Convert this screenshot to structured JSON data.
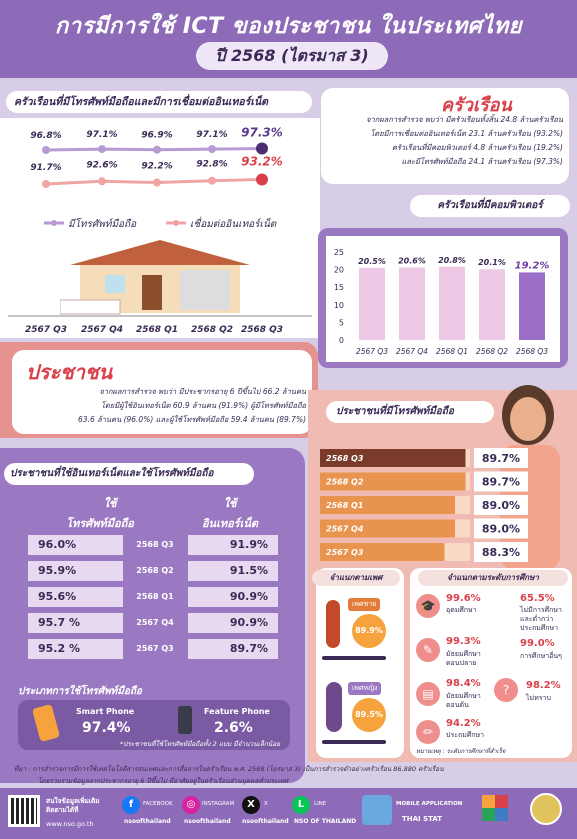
{
  "header": {
    "title": "การมีการใช้ ICT ของประชาชน ในประเทศไทย",
    "subtitle": "ปี 2568 (ไตรมาส 3)"
  },
  "household": {
    "section_title": "ครัวเรือนที่มีโทรศัพท์มือถือและมีการเชื่อมต่ออินเทอร์เน็ต",
    "legend_mobile": "มีโทรศัพท์มือถือ",
    "legend_internet": "เชื่อมต่ออินเทอร์เน็ต",
    "box_title": "ครัวเรือน",
    "box_lines": [
      "จากผลการสำรวจ พบว่า มีครัวเรือนทั้งสิ้น 24.8 ล้านครัวเรือน",
      "โดยมีการเชื่อมต่ออินเทอร์เน็ต 23.1 ล้านครัวเรือน (93.2%)",
      "ครัวเรือนที่มีคอมพิวเตอร์ 4.8 ล้านครัวเรือน (19.2%)",
      "และมีโทรศัพท์มือถือ 24.1 ล้านครัวเรือน (97.3%)"
    ],
    "computer_title": "ครัวเรือนที่มีคอมพิวเตอร์"
  },
  "people": {
    "title": "ประชาชน",
    "lines": [
      "จากผลการสำรวจ พบว่า มีประชากรอายุ 6 ปีขึ้นไป 66.2 ล้านคน",
      "โดยมีผู้ใช้อินเทอร์เน็ต 60.9 ล้านคน (91.9%) ผู้มีโทรศัพท์มือถือ",
      "63.6 ล้านคน (96.0%) และผู้ใช้โทรศัพท์มือถือ 59.4 ล้านคน (89.7%)"
    ]
  },
  "usage": {
    "title": "ประชาชนที่ใช้อินเทอร์เน็ตและใช้โทรศัพท์มือถือ",
    "col_left": "ใช้\nโทรศัพท์มือถือ",
    "col_left_a": "ใช้",
    "col_left_b": "โทรศัพท์มือถือ",
    "col_right_a": "ใช้",
    "col_right_b": "อินเทอร์เน็ต",
    "rows": [
      {
        "mobile": "96.0%",
        "q": "2568 Q3",
        "internet": "91.9%"
      },
      {
        "mobile": "95.9%",
        "q": "2568 Q2",
        "internet": "91.5%"
      },
      {
        "mobile": "95.6%",
        "q": "2568 Q1",
        "internet": "90.9%"
      },
      {
        "mobile": "95.7 %",
        "q": "2567 Q4",
        "internet": "90.9%"
      },
      {
        "mobile": "95.2 %",
        "q": "2567 Q3",
        "internet": "89.7%"
      }
    ],
    "type_title": "ประเภทการใช้โทรศัพท์มือถือ",
    "smart_label": "Smart Phone",
    "smart_val": "97.4%",
    "feature_label": "Feature Phone",
    "feature_val": "2.6%",
    "note": "*ประชาชนที่ใช้โทรศัพท์มือถือทั้ง 2 แบบ มีจำนวนเล็กน้อย"
  },
  "mobile_people": {
    "title": "ประชาชนที่มีโทรศัพท์มือถือ",
    "gender_title": "จำแนกตามเพศ",
    "male": "เพศชาย",
    "male_val": "89.9%",
    "female": "เพศหญิง",
    "female_val": "89.5%",
    "edu_title": "จำแนกตามระดับการศึกษา",
    "edu": [
      {
        "val": "99.6%",
        "label": "อุดมศึกษา"
      },
      {
        "val": "65.5%",
        "label": "ไม่มีการศึกษา และต่ำกว่า ประถมศึกษา"
      },
      {
        "val": "99.3%",
        "label": "มัธยมศึกษา ตอนปลาย"
      },
      {
        "val": "99.0%",
        "label": "การศึกษาอื่นๆ"
      },
      {
        "val": "98.4%",
        "label": "มัธยมศึกษา ตอนต้น"
      },
      {
        "val": "98.2%",
        "label": "ไม่ทราบ"
      },
      {
        "val": "94.2%",
        "label": "ประถมศึกษา"
      }
    ],
    "remark": "หมายเหตุ : ระดับการศึกษาที่สำเร็จ"
  },
  "footnote": [
    "ที่มา : การสำรวจการมีการใช้เทคโนโลยีสารสนเทศและการสื่อสารในครัวเรือน พ.ศ. 2568 (ไตรมาส 3) เป็นการสำรวจตัวอย่างครัวเรือน 86,880 ครัวเรือน",
    "โดยรวบรวมข้อมูลจากประชากรอายุ 6 ปีขึ้นไป ที่อาศัยอยู่ในครัวเรือนส่วนบุคคลทั่วประเทศ"
  ],
  "footer": {
    "qr_text": "สนใจข้อมูลเพิ่มเติม ติดตามได้ที่",
    "site": "www.nso.go.th",
    "fb": "FACEBOOK",
    "fb_h": "nsoofthailand",
    "ig": "INSTAGRAM",
    "ig_h": "nsoofthailand",
    "x": "X",
    "x_h": "nsoofthailand",
    "line": "LINE",
    "line_h": "NSO OF THAILAND",
    "app": "MOBILE APPLICATION",
    "app_name": "THAI STAT"
  },
  "colors": {
    "purple": "#8e6bb8",
    "red": "#d9414a",
    "pink": "#f08e8e",
    "line_mobile": "#b69ad1",
    "line_internet": "#f0a4a4"
  },
  "chart_data": [
    {
      "type": "line",
      "categories": [
        "2567 Q3",
        "2567 Q4",
        "2568 Q1",
        "2568 Q2",
        "2568 Q3"
      ],
      "series": [
        {
          "name": "มีโทรศัพท์มือถือ",
          "values": [
            96.8,
            97.1,
            96.9,
            97.1,
            97.3
          ],
          "labels": [
            "96.8%",
            "97.1%",
            "96.9%",
            "97.1%",
            "97.3%"
          ]
        },
        {
          "name": "เชื่อมต่ออินเทอร์เน็ต",
          "values": [
            91.7,
            92.6,
            92.2,
            92.8,
            93.2
          ],
          "labels": [
            "91.7%",
            "92.6%",
            "92.2%",
            "92.8%",
            "93.2%"
          ]
        }
      ]
    },
    {
      "type": "bar",
      "categories": [
        "2567 Q3",
        "2567 Q4",
        "2568 Q1",
        "2568 Q2",
        "2568 Q3"
      ],
      "values": [
        20.5,
        20.6,
        20.8,
        20.1,
        19.2
      ],
      "labels": [
        "20.5%",
        "20.6%",
        "20.8%",
        "20.1%",
        "19.2%"
      ],
      "ylim": [
        0,
        25
      ],
      "yticks": [
        "0",
        "5",
        "10",
        "15",
        "20",
        "25"
      ]
    },
    {
      "type": "bar",
      "categories": [
        "2568 Q3",
        "2568 Q2",
        "2568 Q1",
        "2567 Q4",
        "2567 Q3"
      ],
      "values": [
        89.7,
        89.7,
        89.0,
        89.0,
        88.3
      ],
      "labels": [
        "89.7%",
        "89.7%",
        "89.0%",
        "89.0%",
        "88.3%"
      ]
    }
  ]
}
